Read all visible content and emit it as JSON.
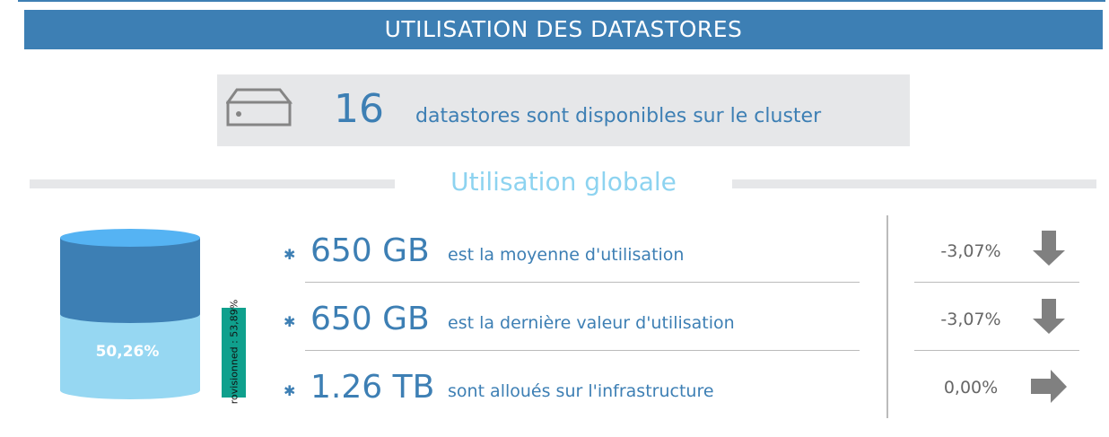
{
  "header": {
    "title": "UTILISATION DES DATASTORES"
  },
  "summary": {
    "icon": "hard-drive-icon",
    "count": "16",
    "text": "datastores sont disponibles sur le cluster"
  },
  "section": {
    "title": "Utilisation globale"
  },
  "cylinder": {
    "used_percent_label": "50,26%",
    "used_fraction": 0.5026,
    "colors": {
      "top": "#55b3f3",
      "dark": "#3d7fb4",
      "light": "#96d7f2"
    }
  },
  "provisioned": {
    "label": "rovisionned : 53,89%",
    "color": "#0fa08d"
  },
  "stats": [
    {
      "value": "650 GB",
      "label": "est la moyenne d'utilisation",
      "change": "-3,07%",
      "trend_icon": "arrow-down-icon"
    },
    {
      "value": "650 GB",
      "label": "est la dernière valeur d'utilisation",
      "change": "-3,07%",
      "trend_icon": "arrow-down-icon"
    },
    {
      "value": "1.26 TB",
      "label": "sont alloués sur l'infrastructure",
      "change": "0,00%",
      "trend_icon": "arrow-right-icon"
    }
  ],
  "colors": {
    "accent": "#3d7fb4",
    "section_title": "#8dd3f0",
    "arrow": "#808080"
  }
}
